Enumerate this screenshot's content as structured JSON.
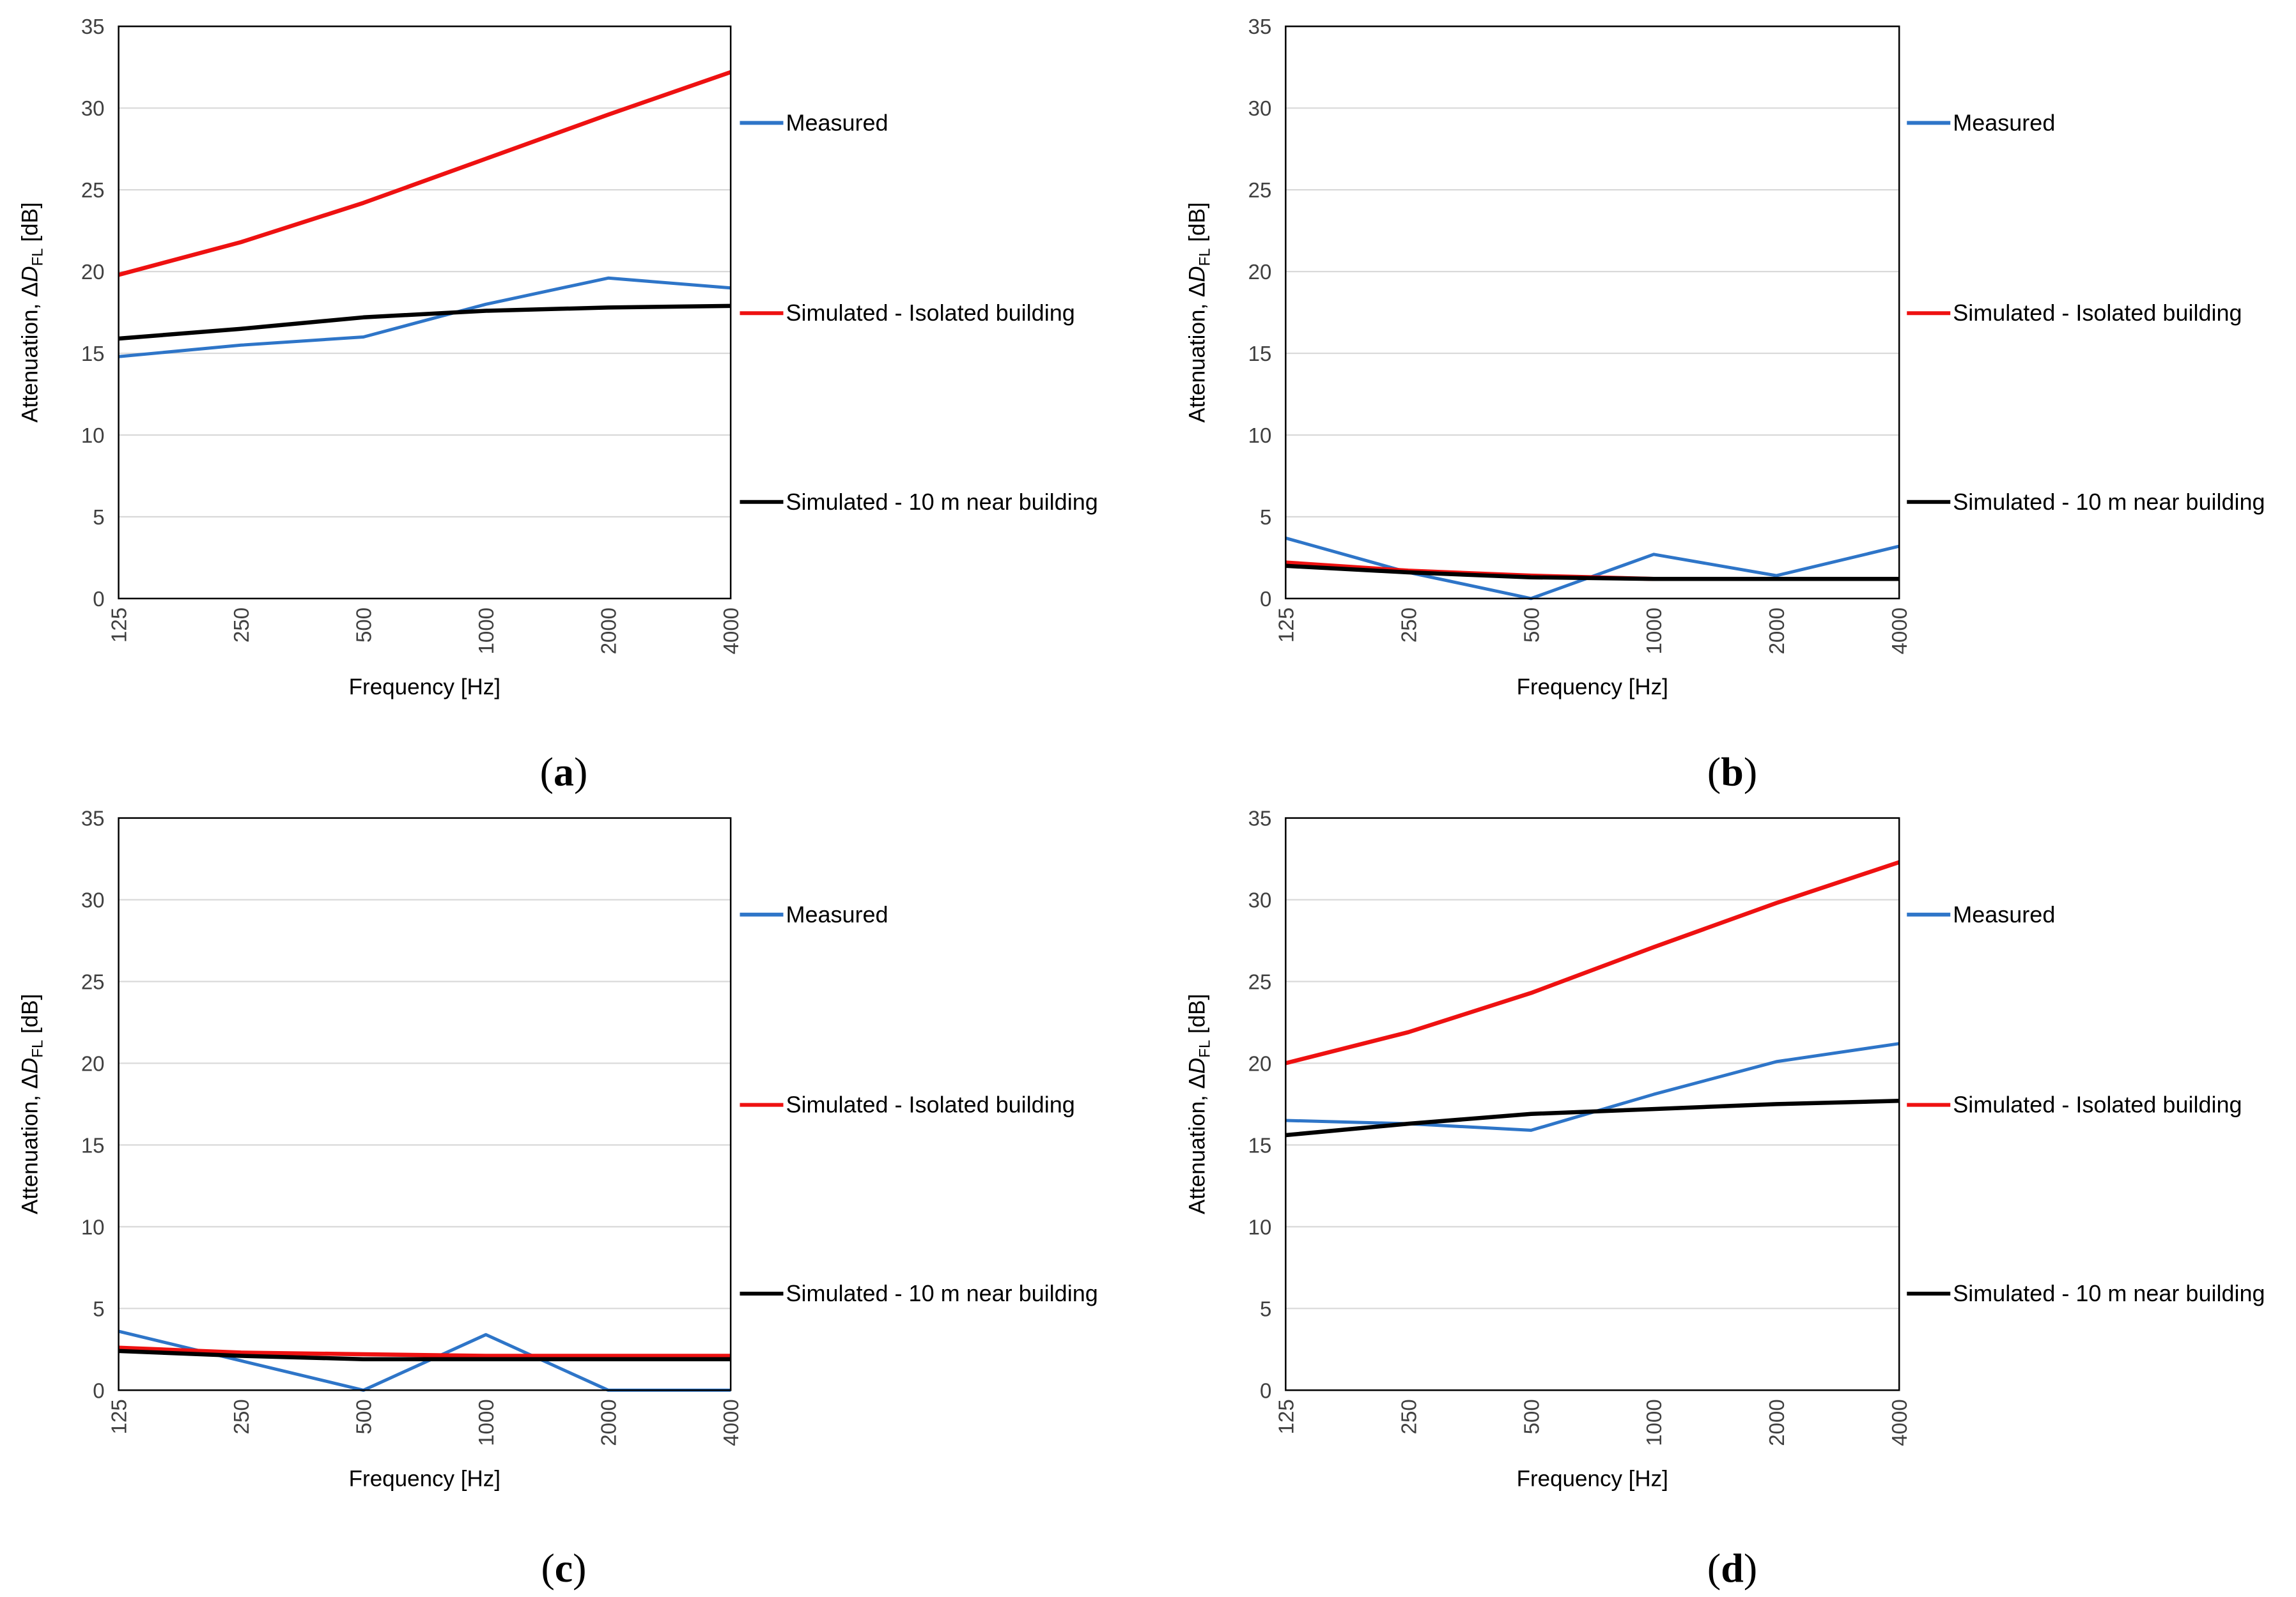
{
  "figure": {
    "panel_labels": [
      {
        "open": "(",
        "letter": "a",
        "close": ")"
      },
      {
        "open": "(",
        "letter": "b",
        "close": ")"
      },
      {
        "open": "(",
        "letter": "c",
        "close": ")"
      },
      {
        "open": "(",
        "letter": "d",
        "close": ")"
      }
    ]
  },
  "colors": {
    "measured": "#2E75C8",
    "isolated": "#EE1111",
    "near": "#000000",
    "grid": "#D9D9D9",
    "frame": "#000000"
  },
  "chart_data": [
    {
      "type": "line",
      "panel": "a",
      "categories": [
        "125",
        "250",
        "500",
        "1000",
        "2000",
        "4000"
      ],
      "xlabel": "Frequency [Hz]",
      "ylabel": {
        "prefix": "Attenuation, Δ",
        "var": "D",
        "sub": "FL",
        "suffix": " [dB]"
      },
      "ylim": [
        0,
        35
      ],
      "yticks": [
        0,
        5,
        10,
        15,
        20,
        25,
        30,
        35
      ],
      "grid": true,
      "legend": "right",
      "series": [
        {
          "name": "Measured",
          "key": "measured",
          "values": [
            14.8,
            15.5,
            16.0,
            18.0,
            19.6,
            19.0
          ]
        },
        {
          "name": "Simulated - Isolated building",
          "key": "isolated",
          "values": [
            19.8,
            21.8,
            24.2,
            26.9,
            29.6,
            32.2
          ]
        },
        {
          "name": "Simulated - 10 m near building",
          "key": "near",
          "values": [
            15.9,
            16.5,
            17.2,
            17.6,
            17.8,
            17.9
          ]
        }
      ]
    },
    {
      "type": "line",
      "panel": "b",
      "categories": [
        "125",
        "250",
        "500",
        "1000",
        "2000",
        "4000"
      ],
      "xlabel": "Frequency [Hz]",
      "ylabel": {
        "prefix": "Attenuation, Δ",
        "var": "D",
        "sub": "FL",
        "suffix": " [dB]"
      },
      "ylim": [
        0,
        35
      ],
      "yticks": [
        0,
        5,
        10,
        15,
        20,
        25,
        30,
        35
      ],
      "grid": true,
      "legend": "right",
      "series": [
        {
          "name": "Measured",
          "key": "measured",
          "values": [
            3.7,
            1.6,
            0.0,
            2.7,
            1.4,
            3.2
          ]
        },
        {
          "name": "Simulated - Isolated building",
          "key": "isolated",
          "values": [
            2.2,
            1.7,
            1.4,
            1.2,
            1.2,
            1.2
          ]
        },
        {
          "name": "Simulated - 10 m near building",
          "key": "near",
          "values": [
            2.0,
            1.6,
            1.3,
            1.2,
            1.2,
            1.2
          ]
        }
      ]
    },
    {
      "type": "line",
      "panel": "c",
      "categories": [
        "125",
        "250",
        "500",
        "1000",
        "2000",
        "4000"
      ],
      "xlabel": "Frequency [Hz]",
      "ylabel": {
        "prefix": "Attenuation, Δ",
        "var": "D",
        "sub": "FL",
        "suffix": " [dB]"
      },
      "ylim": [
        0,
        35
      ],
      "yticks": [
        0,
        5,
        10,
        15,
        20,
        25,
        30,
        35
      ],
      "grid": true,
      "legend": "right",
      "series": [
        {
          "name": "Measured",
          "key": "measured",
          "values": [
            3.6,
            1.8,
            0.0,
            3.4,
            0.0,
            0.0
          ]
        },
        {
          "name": "Simulated - Isolated building",
          "key": "isolated",
          "values": [
            2.6,
            2.3,
            2.2,
            2.1,
            2.1,
            2.1
          ]
        },
        {
          "name": "Simulated - 10 m near building",
          "key": "near",
          "values": [
            2.4,
            2.1,
            1.9,
            1.9,
            1.9,
            1.9
          ]
        }
      ]
    },
    {
      "type": "line",
      "panel": "d",
      "categories": [
        "125",
        "250",
        "500",
        "1000",
        "2000",
        "4000"
      ],
      "xlabel": "Frequency [Hz]",
      "ylabel": {
        "prefix": "Attenuation, Δ",
        "var": "D",
        "sub": "FL",
        "suffix": " [dB]"
      },
      "ylim": [
        0,
        35
      ],
      "yticks": [
        0,
        5,
        10,
        15,
        20,
        25,
        30,
        35
      ],
      "grid": true,
      "legend": "right",
      "series": [
        {
          "name": "Measured",
          "key": "measured",
          "values": [
            16.5,
            16.3,
            15.9,
            18.1,
            20.1,
            21.2
          ]
        },
        {
          "name": "Simulated - Isolated building",
          "key": "isolated",
          "values": [
            20.0,
            21.9,
            24.3,
            27.1,
            29.8,
            32.3
          ]
        },
        {
          "name": "Simulated - 10 m near building",
          "key": "near",
          "values": [
            15.6,
            16.3,
            16.9,
            17.2,
            17.5,
            17.7
          ]
        }
      ]
    }
  ]
}
